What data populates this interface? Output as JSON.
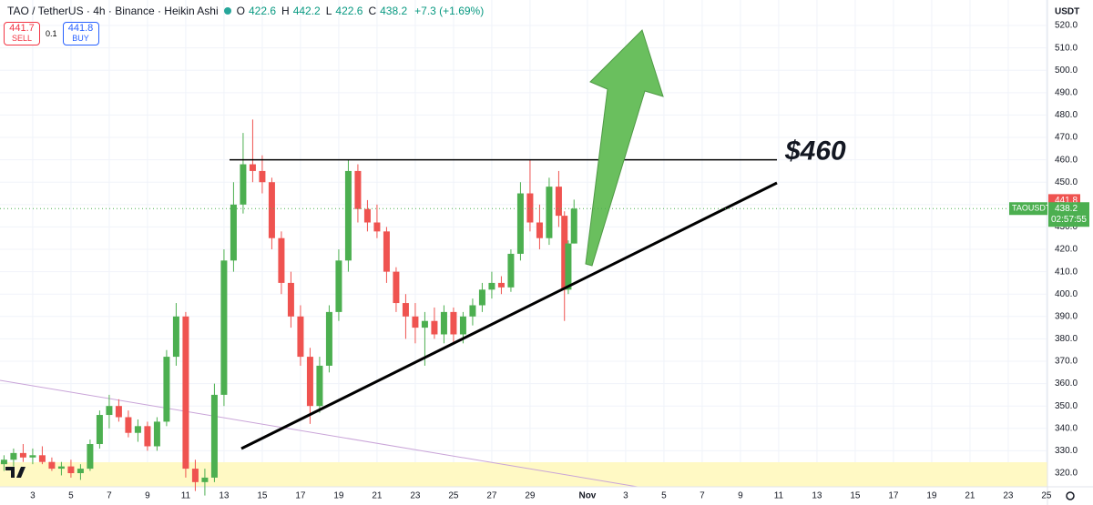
{
  "chart_data": {
    "type": "candlestick",
    "title": "TAO / TetherUS · 4h · Binance · Heikin Ashi",
    "legend_values": [
      {
        "key": "O",
        "value": "422.6"
      },
      {
        "key": "H",
        "value": "442.2"
      },
      {
        "key": "L",
        "value": "422.6"
      },
      {
        "key": "C",
        "value": "438.2"
      }
    ],
    "change": "+7.3 (+1.69%)",
    "trade": {
      "sell_price": "441.7",
      "sell": "SELL",
      "spread": "0.1",
      "buy_price": "441.8",
      "buy": "BUY"
    },
    "currency": "USDT",
    "up_color": "#4caf50",
    "down_color": "#ef5350",
    "x": [
      1.5,
      2,
      2.5,
      3,
      3.5,
      4,
      4.5,
      5,
      5.5,
      6,
      6.5,
      7,
      7.5,
      8,
      8.5,
      9,
      9.5,
      10,
      10.5,
      11,
      11.5,
      12,
      12.5,
      13,
      13.5,
      14,
      14.5,
      15,
      15.5,
      16,
      16.5,
      17,
      17.5,
      18,
      18.5,
      19,
      19.5,
      20,
      20.5,
      21,
      21.5,
      22,
      22.5,
      23,
      23.5,
      24,
      24.5,
      25,
      25.5,
      26,
      26.5,
      27,
      27.5,
      28,
      28.5,
      29,
      29.5,
      30,
      30.5,
      30.8,
      31,
      31.3
    ],
    "open": [
      324,
      326,
      329,
      327,
      328,
      325,
      322,
      323,
      320,
      322,
      333,
      346,
      350,
      345,
      338,
      341,
      332,
      343,
      372,
      390,
      322,
      316,
      318,
      355,
      415,
      440,
      458,
      455,
      450,
      425,
      405,
      390,
      372,
      350,
      368,
      392,
      415,
      455,
      438,
      432,
      428,
      410,
      396,
      390,
      385,
      388,
      382,
      392,
      382,
      390,
      395,
      402,
      405,
      403,
      418,
      445,
      432,
      425,
      448,
      435,
      402,
      422.6
    ],
    "high": [
      328,
      331,
      333,
      331,
      332,
      327,
      325,
      326,
      324,
      335,
      348,
      355,
      353,
      348,
      344,
      343,
      345,
      375,
      396,
      392,
      326,
      322,
      360,
      420,
      450,
      472,
      478,
      462,
      452,
      428,
      410,
      395,
      376,
      372,
      395,
      420,
      460,
      458,
      442,
      440,
      430,
      412,
      400,
      396,
      392,
      394,
      395,
      394,
      392,
      398,
      405,
      410,
      408,
      420,
      450,
      460,
      440,
      452,
      455,
      437,
      424,
      442.2
    ],
    "low": [
      321,
      323,
      325,
      324,
      324,
      321,
      319,
      318,
      317,
      321,
      331,
      340,
      343,
      336,
      334,
      330,
      330,
      341,
      368,
      318,
      312,
      310,
      316,
      350,
      410,
      436,
      450,
      445,
      420,
      400,
      385,
      368,
      342,
      347,
      365,
      388,
      410,
      432,
      428,
      425,
      405,
      392,
      380,
      378,
      368,
      380,
      378,
      378,
      378,
      386,
      392,
      398,
      400,
      401,
      415,
      428,
      420,
      422,
      430,
      388,
      400,
      422.6
    ],
    "close": [
      326,
      329,
      327,
      328,
      325,
      322,
      323,
      320,
      322,
      333,
      346,
      350,
      345,
      338,
      341,
      332,
      343,
      372,
      390,
      322,
      316,
      318,
      355,
      415,
      440,
      458,
      455,
      450,
      425,
      405,
      390,
      372,
      350,
      368,
      392,
      415,
      455,
      438,
      432,
      428,
      410,
      396,
      390,
      385,
      388,
      382,
      392,
      382,
      390,
      395,
      402,
      405,
      403,
      418,
      445,
      432,
      425,
      448,
      435,
      402,
      422.6,
      438.2
    ],
    "xlim": [
      1.29,
      56.05
    ],
    "xticks": [
      3,
      5,
      7,
      9,
      11,
      13,
      15,
      17,
      19,
      21,
      23,
      25,
      27,
      29,
      {
        "value": 32,
        "label": "Nov"
      },
      {
        "value": 34,
        "label": "3"
      },
      {
        "value": 36,
        "label": "5"
      },
      {
        "value": 38,
        "label": "7"
      },
      {
        "value": 40,
        "label": "9"
      },
      {
        "value": 42,
        "label": "11"
      },
      {
        "value": 44,
        "label": "13"
      },
      {
        "value": 46,
        "label": "15"
      },
      {
        "value": 48,
        "label": "17"
      },
      {
        "value": 50,
        "label": "19"
      },
      {
        "value": 52,
        "label": "21"
      },
      {
        "value": 54,
        "label": "23"
      },
      {
        "value": 56,
        "label": "25"
      }
    ],
    "ylim": [
      313.9,
      531.4
    ],
    "yticks": [
      {
        "value": 320,
        "label": "320.0"
      },
      {
        "value": 330,
        "label": "330.0"
      },
      {
        "value": 340,
        "label": "340.0"
      },
      {
        "value": 350,
        "label": "350.0"
      },
      {
        "value": 360,
        "label": "360.0"
      },
      {
        "value": 370,
        "label": "370.0"
      },
      {
        "value": 380,
        "label": "380.0"
      },
      {
        "value": 390,
        "label": "390.0"
      },
      {
        "value": 400,
        "label": "400.0"
      },
      {
        "value": 410,
        "label": "410.0"
      },
      {
        "value": 420,
        "label": "420.0"
      },
      {
        "value": 430,
        "label": "430.0"
      },
      {
        "value": 440,
        "label": "440.0"
      },
      {
        "value": 450,
        "label": "450.0"
      },
      {
        "value": 460,
        "label": "460.0"
      },
      {
        "value": 470,
        "label": "470.0"
      },
      {
        "value": 480,
        "label": "480.0"
      },
      {
        "value": 490,
        "label": "490.0"
      },
      {
        "value": 500,
        "label": "500.0"
      },
      {
        "value": 510,
        "label": "510.0"
      },
      {
        "value": 520,
        "label": "520.0"
      }
    ],
    "grid": true,
    "ask": 441.8,
    "last": 438.2,
    "symbol": "TAOUSDT",
    "countdown": "02:57:55",
    "resistance": {
      "value": 460,
      "label": "$460"
    }
  }
}
